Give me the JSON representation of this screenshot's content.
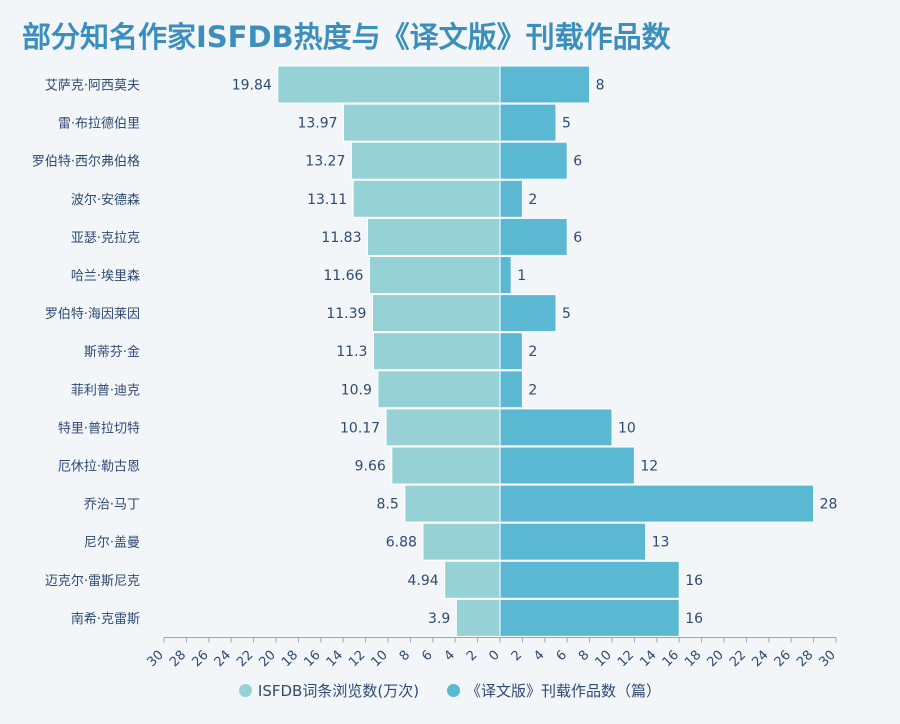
{
  "title": "部分知名作家ISFDB热度与《译文版》刊载作品数",
  "legend": [
    {
      "label": "ISFDB词条浏览数(万次)",
      "color": "#96d2d5"
    },
    {
      "label": "《译文版》刊载作品数（篇）",
      "color": "#5ab8d3"
    }
  ],
  "chart_data": {
    "type": "bar",
    "orientation": "horizontal-diverging",
    "categories": [
      "艾萨克·阿西莫夫",
      "雷·布拉德伯里",
      "罗伯特·西尔弗伯格",
      "波尔·安德森",
      "亚瑟·克拉克",
      "哈兰·埃里森",
      "罗伯特·海因莱因",
      "斯蒂芬·金",
      "菲利普·迪克",
      "特里·普拉切特",
      "厄休拉·勒古恩",
      "乔治·马丁",
      "尼尔·盖曼",
      "迈克尔·雷斯尼克",
      "南希·克雷斯"
    ],
    "series": [
      {
        "name": "ISFDB词条浏览数(万次)",
        "side": "left",
        "color": "#96d2d5",
        "values": [
          19.84,
          13.97,
          13.27,
          13.11,
          11.83,
          11.66,
          11.39,
          11.3,
          10.9,
          10.17,
          9.66,
          8.5,
          6.88,
          4.94,
          3.9
        ]
      },
      {
        "name": "《译文版》刊载作品数（篇）",
        "side": "right",
        "color": "#5ab8d3",
        "values": [
          8,
          5,
          6,
          2,
          6,
          1,
          5,
          2,
          2,
          10,
          12,
          28,
          13,
          16,
          16
        ]
      }
    ],
    "xlim": [
      -30,
      30
    ],
    "xticks": [
      "30",
      "28",
      "26",
      "24",
      "22",
      "20",
      "18",
      "16",
      "14",
      "12",
      "10",
      "8",
      "6",
      "4",
      "2",
      "0",
      "2",
      "4",
      "6",
      "8",
      "10",
      "12",
      "14",
      "16",
      "18",
      "20",
      "22",
      "24",
      "26",
      "28",
      "30"
    ],
    "grid": false,
    "legend_position": "bottom"
  }
}
